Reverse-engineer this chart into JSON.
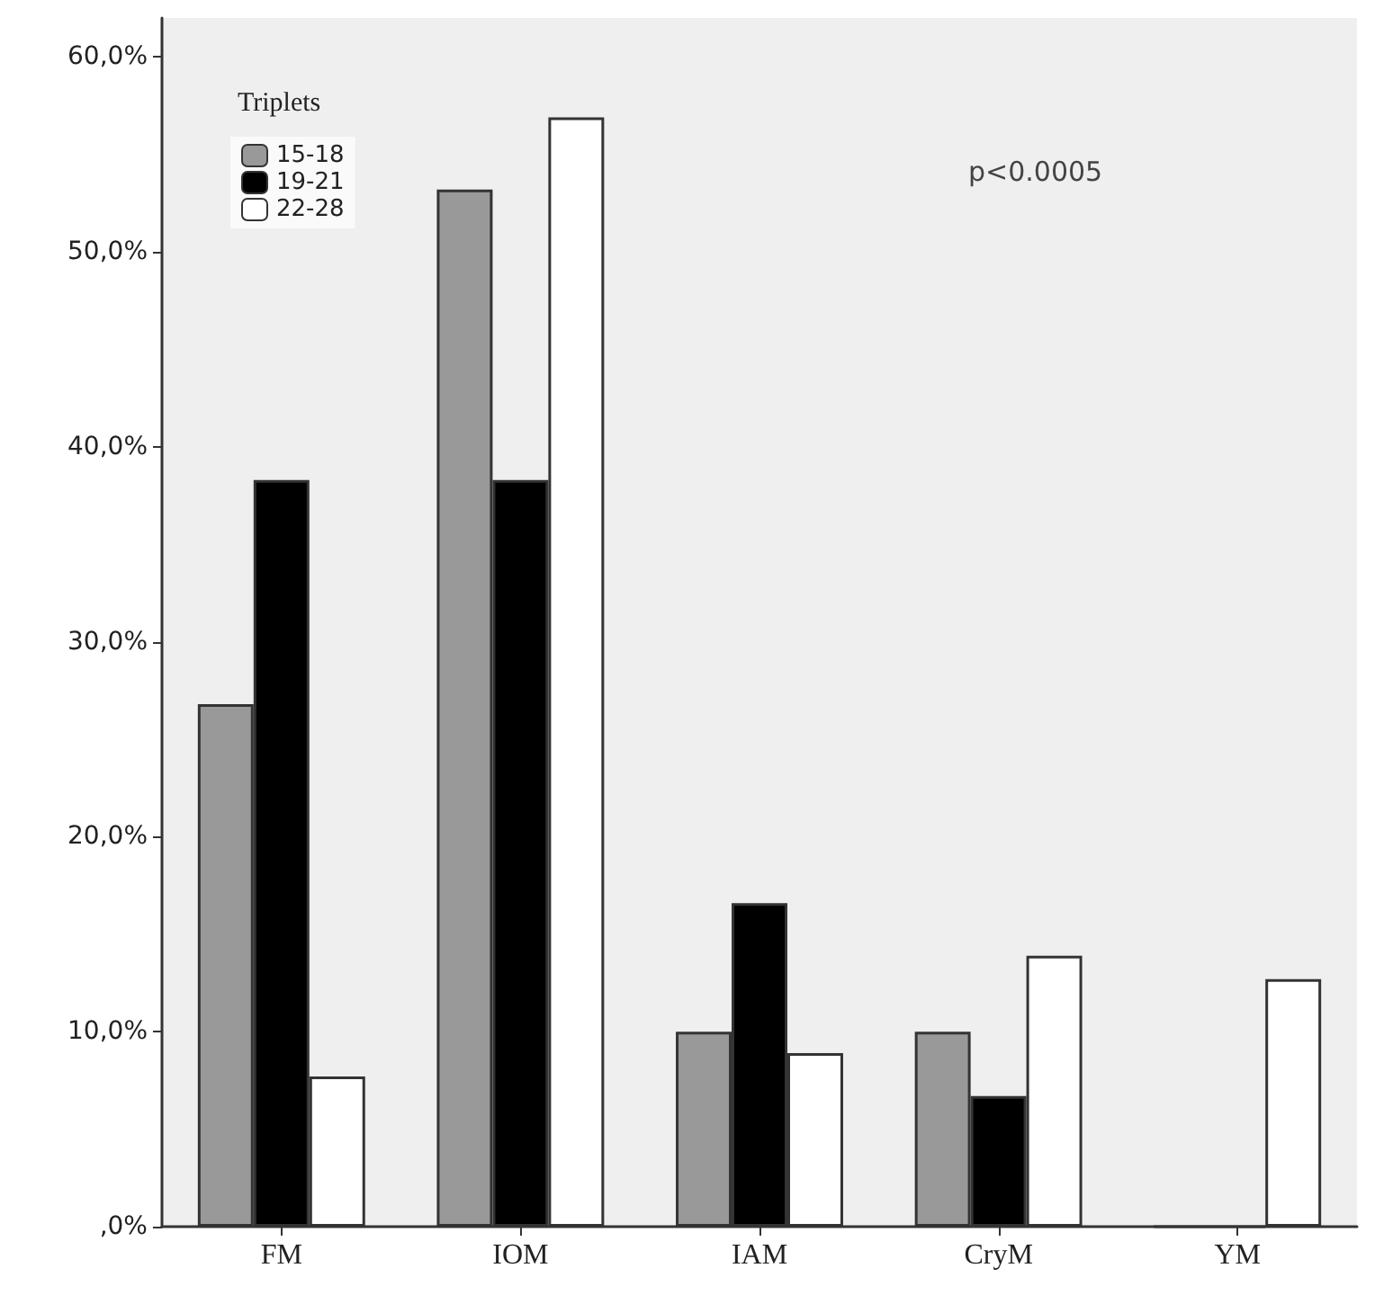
{
  "chart_data": {
    "type": "bar",
    "categories": [
      "FM",
      "IOM",
      "IAM",
      "CryM",
      "YM"
    ],
    "series": [
      {
        "name": "15-18",
        "color": "#999999",
        "values": [
          26.8,
          53.2,
          10.0,
          10.0,
          0
        ]
      },
      {
        "name": "19-21",
        "color": "#000000",
        "values": [
          38.3,
          38.3,
          16.6,
          6.7,
          0
        ]
      },
      {
        "name": "22-28",
        "color": "#ffffff",
        "values": [
          7.7,
          56.9,
          8.9,
          13.9,
          12.7
        ]
      }
    ],
    "ylim": [
      0,
      62
    ],
    "yticks": [
      {
        "value": 0,
        "label": ",0%"
      },
      {
        "value": 10,
        "label": "10,0%"
      },
      {
        "value": 20,
        "label": "20,0%"
      },
      {
        "value": 30,
        "label": "30,0%"
      },
      {
        "value": 40,
        "label": "40,0%"
      },
      {
        "value": 50,
        "label": "50,0%"
      },
      {
        "value": 60,
        "label": "60,0%"
      }
    ],
    "legend_title": "Triplets",
    "legend": "top left",
    "grid": false,
    "annotations": [
      "p<0.0005"
    ]
  }
}
